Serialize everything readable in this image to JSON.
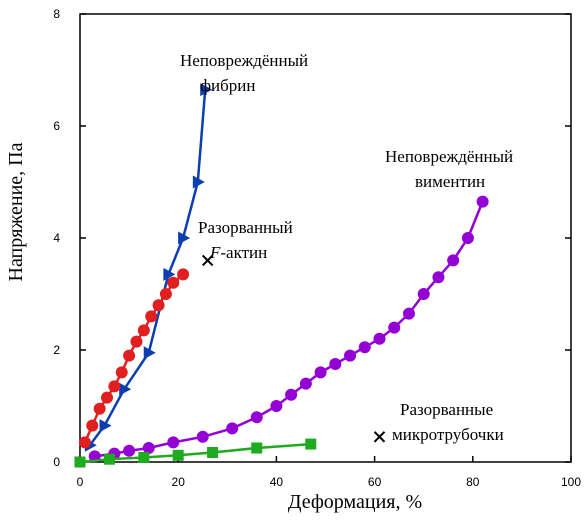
{
  "chart_data": {
    "type": "line",
    "title": "",
    "xlabel": "Деформация, %",
    "ylabel": "Напряжение, Па",
    "xlim": [
      0,
      100
    ],
    "ylim": [
      0,
      8
    ],
    "x_ticks": [
      "0",
      "20",
      "40",
      "60",
      "80",
      "100"
    ],
    "y_ticks": [
      "0",
      "2",
      "4",
      "6",
      "8"
    ],
    "grid": false,
    "series": [
      {
        "name": "Неповреждённый фибрин",
        "color": "#0b3fb0",
        "marker": "triangle-right",
        "x": [
          2,
          5,
          9,
          14,
          18,
          21,
          24,
          25.5
        ],
        "y": [
          0.3,
          0.65,
          1.3,
          1.95,
          3.35,
          4.0,
          5.0,
          6.65
        ]
      },
      {
        "name": "Разорванный F-актин",
        "color": "#e02020",
        "marker": "circle",
        "x": [
          1,
          2.5,
          4,
          5.5,
          7,
          8.5,
          10,
          11.5,
          13,
          14.5,
          16,
          17.5,
          19,
          21
        ],
        "y": [
          0.35,
          0.65,
          0.95,
          1.15,
          1.35,
          1.6,
          1.9,
          2.15,
          2.35,
          2.6,
          2.8,
          3.0,
          3.2,
          3.35
        ],
        "end_marker": {
          "symbol": "x",
          "x": 26,
          "y": 3.6
        }
      },
      {
        "name": "Неповреждённый вимeнтин",
        "color": "#9400d3",
        "marker": "circle",
        "x": [
          3,
          7,
          10,
          14,
          19,
          25,
          31,
          36,
          40,
          43,
          46,
          49,
          52,
          55,
          58,
          61,
          64,
          67,
          70,
          73,
          76,
          79,
          82
        ],
        "y": [
          0.1,
          0.15,
          0.2,
          0.25,
          0.35,
          0.45,
          0.6,
          0.8,
          1.0,
          1.2,
          1.4,
          1.6,
          1.75,
          1.9,
          2.05,
          2.2,
          2.4,
          2.65,
          3.0,
          3.3,
          3.6,
          4.0,
          4.65
        ]
      },
      {
        "name": "Разорванные микротрубочки",
        "color": "#1faa1f",
        "marker": "square",
        "x": [
          0,
          6,
          13,
          20,
          27,
          36,
          47
        ],
        "y": [
          0.0,
          0.05,
          0.08,
          0.12,
          0.17,
          0.25,
          0.32
        ],
        "end_marker": {
          "symbol": "x",
          "x": 61,
          "y": 0.45
        }
      }
    ],
    "annotations": {
      "fibrin": [
        "Неповреждённый",
        "фибрин"
      ],
      "actin": [
        "Разорванный",
        "F-актин"
      ],
      "vimentin": [
        "Неповреждённый",
        "вимeнтин"
      ],
      "microtubules": [
        "Разорванные",
        "микротрубочки"
      ]
    }
  }
}
